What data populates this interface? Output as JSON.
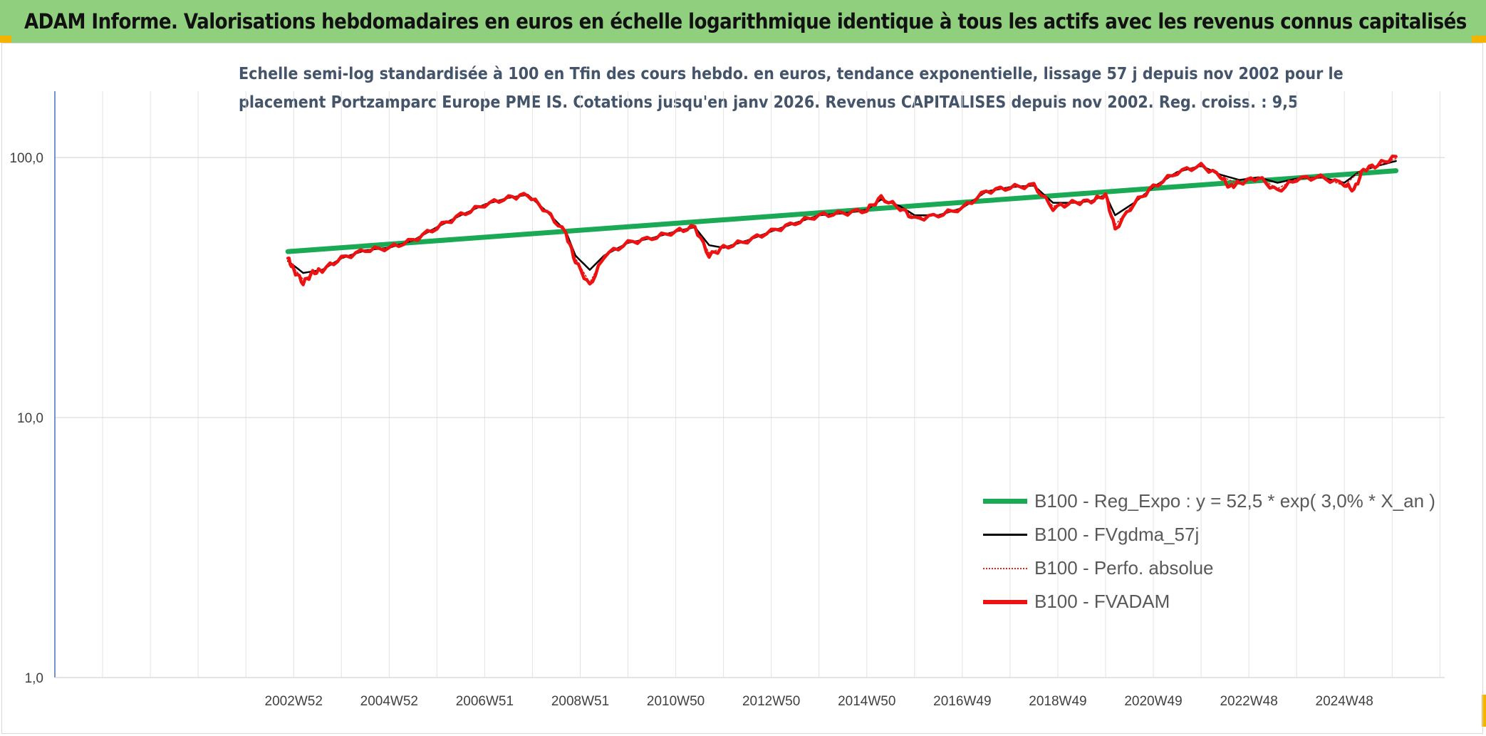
{
  "header": {
    "title": "ADAM Informe. Valorisations hebdomadaires en euros en échelle logarithmique identique à tous les actifs avec les revenus connus capitalisés"
  },
  "chart_data": {
    "type": "line",
    "title_lines": [
      "Echelle semi-log standardisée à 100 en Tfin des cours hebdo. en euros, tendance exponentielle, lissage 57 j depuis nov 2002 pour le",
      "placement Portzamparc Europe PME IS. Cotations jusqu'en janv 2026. Revenus CAPITALISES depuis nov 2002. Reg. croiss. : 9,5"
    ],
    "y_scale": "log",
    "ylim": [
      1,
      180
    ],
    "y_ticks": [
      {
        "value": 1,
        "label": "1,0"
      },
      {
        "value": 10,
        "label": "10,0"
      },
      {
        "value": 100,
        "label": "100,0"
      }
    ],
    "xlim": [
      1998.0,
      2027.1
    ],
    "x_ticks": [
      "2002W52",
      "2004W52",
      "2006W51",
      "2008W51",
      "2010W50",
      "2012W50",
      "2014W50",
      "2016W49",
      "2018W49",
      "2020W49",
      "2022W48",
      "2024W48"
    ],
    "x_tick_years": [
      2003,
      2005,
      2007,
      2009,
      2011,
      2013,
      2015,
      2017,
      2019,
      2021,
      2023,
      2025
    ],
    "grid": true,
    "legend_position": "bottom-right",
    "series": [
      {
        "name": "B100 - Reg_Expo : y = 52,5 * exp( 3,0% *  X_an )",
        "color": "#1aaa55",
        "points": [
          [
            2002.88,
            43.5
          ],
          [
            2026.08,
            89.0
          ]
        ]
      },
      {
        "name": "B100 - FVgdma_57j",
        "color": "#000000",
        "points": [
          [
            2002.88,
            40
          ],
          [
            2003.2,
            36
          ],
          [
            2003.6,
            37
          ],
          [
            2004.0,
            41
          ],
          [
            2004.5,
            44
          ],
          [
            2005.0,
            45
          ],
          [
            2005.5,
            48
          ],
          [
            2006.0,
            54
          ],
          [
            2006.5,
            60
          ],
          [
            2007.0,
            66
          ],
          [
            2007.5,
            70
          ],
          [
            2007.9,
            72
          ],
          [
            2008.3,
            62
          ],
          [
            2008.7,
            52
          ],
          [
            2008.9,
            42
          ],
          [
            2009.2,
            37
          ],
          [
            2009.5,
            42
          ],
          [
            2010.0,
            47
          ],
          [
            2010.5,
            49
          ],
          [
            2011.0,
            52
          ],
          [
            2011.4,
            54
          ],
          [
            2011.7,
            46
          ],
          [
            2012.0,
            45
          ],
          [
            2012.5,
            48
          ],
          [
            2013.0,
            52
          ],
          [
            2013.5,
            56
          ],
          [
            2014.0,
            60
          ],
          [
            2014.5,
            61
          ],
          [
            2015.0,
            63
          ],
          [
            2015.3,
            69
          ],
          [
            2015.7,
            65
          ],
          [
            2016.0,
            60
          ],
          [
            2016.5,
            60
          ],
          [
            2017.0,
            64
          ],
          [
            2017.5,
            74
          ],
          [
            2018.0,
            77
          ],
          [
            2018.5,
            78
          ],
          [
            2018.9,
            67
          ],
          [
            2019.3,
            67
          ],
          [
            2019.7,
            68
          ],
          [
            2020.0,
            72
          ],
          [
            2020.2,
            60
          ],
          [
            2020.6,
            67
          ],
          [
            2021.0,
            77
          ],
          [
            2021.5,
            88
          ],
          [
            2022.0,
            93
          ],
          [
            2022.4,
            86
          ],
          [
            2022.8,
            82
          ],
          [
            2023.2,
            84
          ],
          [
            2023.6,
            80
          ],
          [
            2024.0,
            83
          ],
          [
            2024.5,
            84
          ],
          [
            2025.0,
            80
          ],
          [
            2025.3,
            88
          ],
          [
            2025.7,
            93
          ],
          [
            2026.08,
            97
          ]
        ]
      },
      {
        "name": "B100 - Perfo. absolue",
        "color": "#e0201a",
        "points": [
          [
            2002.88,
            40
          ],
          [
            2003.2,
            34
          ],
          [
            2003.6,
            37
          ],
          [
            2004.0,
            41
          ],
          [
            2004.5,
            44
          ],
          [
            2005.0,
            45
          ],
          [
            2005.5,
            48
          ],
          [
            2006.0,
            54
          ],
          [
            2006.5,
            60
          ],
          [
            2007.0,
            66
          ],
          [
            2007.5,
            70
          ],
          [
            2007.9,
            72
          ],
          [
            2008.3,
            62
          ],
          [
            2008.7,
            51
          ],
          [
            2008.9,
            41
          ],
          [
            2009.2,
            33
          ],
          [
            2009.5,
            42
          ],
          [
            2010.0,
            47
          ],
          [
            2010.5,
            49
          ],
          [
            2011.0,
            52
          ],
          [
            2011.4,
            54
          ],
          [
            2011.7,
            43
          ],
          [
            2012.0,
            45
          ],
          [
            2012.5,
            48
          ],
          [
            2013.0,
            52
          ],
          [
            2013.5,
            56
          ],
          [
            2014.0,
            60
          ],
          [
            2014.5,
            61
          ],
          [
            2015.0,
            63
          ],
          [
            2015.3,
            70
          ],
          [
            2015.7,
            64
          ],
          [
            2016.0,
            59
          ],
          [
            2016.5,
            60
          ],
          [
            2017.0,
            64
          ],
          [
            2017.5,
            74
          ],
          [
            2018.0,
            77
          ],
          [
            2018.5,
            78
          ],
          [
            2018.9,
            65
          ],
          [
            2019.3,
            67
          ],
          [
            2019.7,
            68
          ],
          [
            2020.0,
            72
          ],
          [
            2020.2,
            55
          ],
          [
            2020.6,
            67
          ],
          [
            2021.0,
            77
          ],
          [
            2021.5,
            88
          ],
          [
            2022.0,
            93
          ],
          [
            2022.4,
            85
          ],
          [
            2022.8,
            79
          ],
          [
            2023.2,
            84
          ],
          [
            2023.6,
            76
          ],
          [
            2024.0,
            83
          ],
          [
            2024.5,
            84
          ],
          [
            2025.0,
            78
          ],
          [
            2025.3,
            88
          ],
          [
            2025.7,
            93
          ],
          [
            2026.08,
            99
          ]
        ]
      },
      {
        "name": "B100 - FVADAM",
        "color": "#ee1111",
        "points": [
          [
            2002.88,
            41
          ],
          [
            2003.0,
            37
          ],
          [
            2003.2,
            33
          ],
          [
            2003.4,
            36
          ],
          [
            2003.6,
            37
          ],
          [
            2004.0,
            41
          ],
          [
            2004.5,
            44
          ],
          [
            2005.0,
            45
          ],
          [
            2005.5,
            48
          ],
          [
            2006.0,
            54
          ],
          [
            2006.5,
            60
          ],
          [
            2007.0,
            66
          ],
          [
            2007.5,
            70
          ],
          [
            2007.9,
            72
          ],
          [
            2008.3,
            62
          ],
          [
            2008.7,
            51
          ],
          [
            2008.9,
            40
          ],
          [
            2009.2,
            32
          ],
          [
            2009.5,
            42
          ],
          [
            2010.0,
            47
          ],
          [
            2010.5,
            49
          ],
          [
            2011.0,
            52
          ],
          [
            2011.4,
            54
          ],
          [
            2011.7,
            42
          ],
          [
            2012.0,
            45
          ],
          [
            2012.5,
            48
          ],
          [
            2013.0,
            52
          ],
          [
            2013.5,
            56
          ],
          [
            2014.0,
            60
          ],
          [
            2014.5,
            61
          ],
          [
            2015.0,
            63
          ],
          [
            2015.3,
            70
          ],
          [
            2015.7,
            64
          ],
          [
            2016.0,
            58
          ],
          [
            2016.5,
            60
          ],
          [
            2017.0,
            64
          ],
          [
            2017.5,
            74
          ],
          [
            2018.0,
            77
          ],
          [
            2018.5,
            78
          ],
          [
            2018.9,
            64
          ],
          [
            2019.3,
            67
          ],
          [
            2019.7,
            68
          ],
          [
            2020.0,
            72
          ],
          [
            2020.2,
            53
          ],
          [
            2020.6,
            67
          ],
          [
            2021.0,
            77
          ],
          [
            2021.5,
            88
          ],
          [
            2022.0,
            93
          ],
          [
            2022.4,
            85
          ],
          [
            2022.6,
            77
          ],
          [
            2022.8,
            80
          ],
          [
            2023.2,
            84
          ],
          [
            2023.6,
            74
          ],
          [
            2024.0,
            83
          ],
          [
            2024.5,
            84
          ],
          [
            2025.0,
            79
          ],
          [
            2025.2,
            75
          ],
          [
            2025.4,
            90
          ],
          [
            2025.7,
            94
          ],
          [
            2026.08,
            101
          ]
        ]
      }
    ]
  }
}
